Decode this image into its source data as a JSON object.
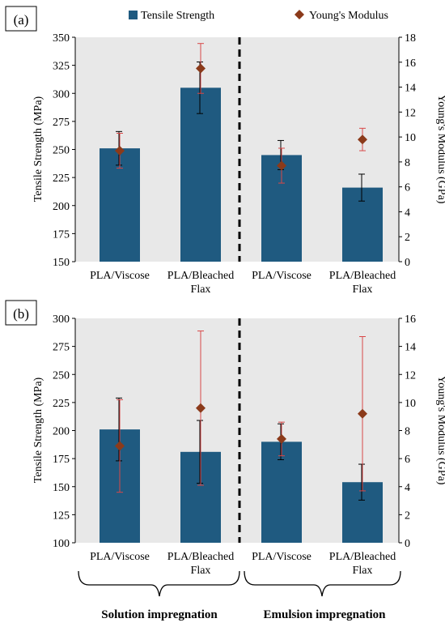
{
  "legend": {
    "items": [
      {
        "label": "Tensile Strength",
        "color": "#1f5a80",
        "marker": "square"
      },
      {
        "label": "Young's Modulus",
        "color": "#8b3a1a",
        "marker": "diamond"
      }
    ]
  },
  "chart_data": [
    {
      "type": "bar",
      "panel_label": "(a)",
      "categories": [
        "PLA/Viscose",
        "PLA/Bleached Flax",
        "PLA/Viscose",
        "PLA/Bleached Flax"
      ],
      "ylabel": "Tensile Strength (MPa)",
      "y2label": "Young's Modulus (GPa)",
      "ylim": [
        150,
        350
      ],
      "yticks": [
        150,
        175,
        200,
        225,
        250,
        275,
        300,
        325,
        350
      ],
      "y2lim": [
        0,
        18
      ],
      "y2ticks": [
        0,
        2,
        4,
        6,
        8,
        10,
        12,
        14,
        16,
        18
      ],
      "grid": false,
      "background": "#e8e8e8",
      "legend_position": "top",
      "series": [
        {
          "name": "Tensile Strength",
          "axis": "left",
          "kind": "bar",
          "values": [
            251,
            305,
            245,
            216
          ],
          "err": [
            15,
            23,
            13,
            12
          ]
        },
        {
          "name": "Young's Modulus",
          "axis": "right",
          "kind": "marker",
          "values": [
            8.9,
            15.5,
            7.7,
            9.8
          ],
          "err": [
            1.4,
            2.0,
            1.4,
            0.9
          ]
        }
      ]
    },
    {
      "type": "bar",
      "panel_label": "(b)",
      "categories": [
        "PLA/Viscose",
        "PLA/Bleached Flax",
        "PLA/Viscose",
        "PLA/Bleached Flax"
      ],
      "ylabel": "Tensile Strength (MPa)",
      "y2label": "Young's Modulus (GPa)",
      "ylim": [
        100,
        300
      ],
      "yticks": [
        100,
        125,
        150,
        175,
        200,
        225,
        250,
        275,
        300
      ],
      "y2lim": [
        0,
        16
      ],
      "y2ticks": [
        0,
        2,
        4,
        6,
        8,
        10,
        12,
        14,
        16
      ],
      "grid": false,
      "background": "#e8e8e8",
      "series": [
        {
          "name": "Tensile Strength",
          "axis": "left",
          "kind": "bar",
          "values": [
            201,
            181,
            190,
            154
          ],
          "err": [
            28,
            28,
            16,
            16
          ]
        },
        {
          "name": "Young's Modulus",
          "axis": "right",
          "kind": "marker",
          "values": [
            6.9,
            9.6,
            7.4,
            9.2
          ],
          "err": [
            3.3,
            5.5,
            1.2,
            5.5
          ]
        }
      ]
    }
  ],
  "groups": [
    "Solution impregnation",
    "Emulsion impregnation"
  ]
}
